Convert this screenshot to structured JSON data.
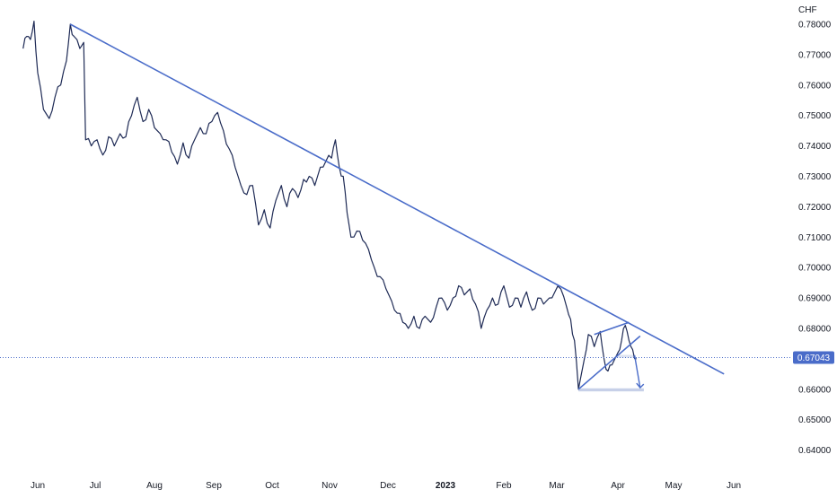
{
  "chart_data": {
    "type": "line",
    "price_axis_unit": "CHF",
    "current_price": {
      "value": 0.67043,
      "label": "0.67043"
    },
    "y_ticks": [
      {
        "value": 0.78,
        "label": "0.78000"
      },
      {
        "value": 0.77,
        "label": "0.77000"
      },
      {
        "value": 0.76,
        "label": "0.76000"
      },
      {
        "value": 0.75,
        "label": "0.75000"
      },
      {
        "value": 0.74,
        "label": "0.74000"
      },
      {
        "value": 0.73,
        "label": "0.73000"
      },
      {
        "value": 0.72,
        "label": "0.72000"
      },
      {
        "value": 0.71,
        "label": "0.71000"
      },
      {
        "value": 0.7,
        "label": "0.70000"
      },
      {
        "value": 0.69,
        "label": "0.69000"
      },
      {
        "value": 0.68,
        "label": "0.68000"
      },
      {
        "value": 0.66,
        "label": "0.66000"
      },
      {
        "value": 0.65,
        "label": "0.65000"
      },
      {
        "value": 0.64,
        "label": "0.64000"
      }
    ],
    "x_ticks": [
      {
        "label": "Jun",
        "date": "2022-06-01",
        "bold": false
      },
      {
        "label": "Jul",
        "date": "2022-07-01",
        "bold": false
      },
      {
        "label": "Aug",
        "date": "2022-08-01",
        "bold": false
      },
      {
        "label": "Sep",
        "date": "2022-09-01",
        "bold": false
      },
      {
        "label": "Oct",
        "date": "2022-10-01",
        "bold": false
      },
      {
        "label": "Nov",
        "date": "2022-11-01",
        "bold": false
      },
      {
        "label": "Dec",
        "date": "2022-12-01",
        "bold": false
      },
      {
        "label": "2023",
        "date": "2023-01-01",
        "bold": true
      },
      {
        "label": "Feb",
        "date": "2023-02-01",
        "bold": false
      },
      {
        "label": "Mar",
        "date": "2023-03-01",
        "bold": false
      },
      {
        "label": "Apr",
        "date": "2023-04-01",
        "bold": false
      },
      {
        "label": "May",
        "date": "2023-05-01",
        "bold": false
      },
      {
        "label": "Jun",
        "date": "2023-06-01",
        "bold": false
      }
    ],
    "series": [
      {
        "color": "#1e2a55",
        "points": [
          [
            "2022-05-20",
            0.772
          ],
          [
            "2022-05-23",
            0.776
          ],
          [
            "2022-05-26",
            0.775
          ],
          [
            "2022-05-29",
            0.781
          ],
          [
            "2022-06-01",
            0.764
          ],
          [
            "2022-06-04",
            0.752
          ],
          [
            "2022-06-07",
            0.749
          ],
          [
            "2022-06-10",
            0.756
          ],
          [
            "2022-06-13",
            0.76
          ],
          [
            "2022-06-16",
            0.768
          ],
          [
            "2022-06-18",
            0.78
          ],
          [
            "2022-06-20",
            0.776
          ],
          [
            "2022-06-23",
            0.772
          ],
          [
            "2022-06-25",
            0.774
          ],
          [
            "2022-06-26",
            0.742
          ],
          [
            "2022-06-29",
            0.74
          ],
          [
            "2022-07-02",
            0.742
          ],
          [
            "2022-07-05",
            0.737
          ],
          [
            "2022-07-08",
            0.743
          ],
          [
            "2022-07-11",
            0.74
          ],
          [
            "2022-07-14",
            0.744
          ],
          [
            "2022-07-17",
            0.743
          ],
          [
            "2022-07-20",
            0.75
          ],
          [
            "2022-07-23",
            0.756
          ],
          [
            "2022-07-26",
            0.748
          ],
          [
            "2022-07-29",
            0.752
          ],
          [
            "2022-08-01",
            0.746
          ],
          [
            "2022-08-04",
            0.744
          ],
          [
            "2022-08-07",
            0.742
          ],
          [
            "2022-08-10",
            0.738
          ],
          [
            "2022-08-13",
            0.734
          ],
          [
            "2022-08-16",
            0.741
          ],
          [
            "2022-08-19",
            0.736
          ],
          [
            "2022-08-22",
            0.742
          ],
          [
            "2022-08-25",
            0.746
          ],
          [
            "2022-08-28",
            0.744
          ],
          [
            "2022-08-31",
            0.748
          ],
          [
            "2022-09-03",
            0.751
          ],
          [
            "2022-09-06",
            0.745
          ],
          [
            "2022-09-09",
            0.739
          ],
          [
            "2022-09-12",
            0.733
          ],
          [
            "2022-09-15",
            0.727
          ],
          [
            "2022-09-18",
            0.724
          ],
          [
            "2022-09-21",
            0.727
          ],
          [
            "2022-09-24",
            0.714
          ],
          [
            "2022-09-27",
            0.719
          ],
          [
            "2022-09-30",
            0.713
          ],
          [
            "2022-10-03",
            0.722
          ],
          [
            "2022-10-06",
            0.727
          ],
          [
            "2022-10-09",
            0.72
          ],
          [
            "2022-10-12",
            0.726
          ],
          [
            "2022-10-15",
            0.723
          ],
          [
            "2022-10-18",
            0.729
          ],
          [
            "2022-10-21",
            0.73
          ],
          [
            "2022-10-24",
            0.727
          ],
          [
            "2022-10-27",
            0.733
          ],
          [
            "2022-10-30",
            0.735
          ],
          [
            "2022-11-02",
            0.736
          ],
          [
            "2022-11-04",
            0.742
          ],
          [
            "2022-11-06",
            0.733
          ],
          [
            "2022-11-08",
            0.73
          ],
          [
            "2022-11-10",
            0.718
          ],
          [
            "2022-11-12",
            0.71
          ],
          [
            "2022-11-15",
            0.712
          ],
          [
            "2022-11-18",
            0.709
          ],
          [
            "2022-11-21",
            0.706
          ],
          [
            "2022-11-24",
            0.7
          ],
          [
            "2022-11-27",
            0.697
          ],
          [
            "2022-11-30",
            0.693
          ],
          [
            "2022-12-03",
            0.689
          ],
          [
            "2022-12-06",
            0.685
          ],
          [
            "2022-12-09",
            0.682
          ],
          [
            "2022-12-12",
            0.68
          ],
          [
            "2022-12-15",
            0.684
          ],
          [
            "2022-12-18",
            0.68
          ],
          [
            "2022-12-21",
            0.684
          ],
          [
            "2022-12-24",
            0.682
          ],
          [
            "2022-12-27",
            0.687
          ],
          [
            "2022-12-30",
            0.69
          ],
          [
            "2023-01-02",
            0.686
          ],
          [
            "2023-01-05",
            0.69
          ],
          [
            "2023-01-08",
            0.694
          ],
          [
            "2023-01-11",
            0.691
          ],
          [
            "2023-01-14",
            0.693
          ],
          [
            "2023-01-17",
            0.688
          ],
          [
            "2023-01-20",
            0.68
          ],
          [
            "2023-01-23",
            0.686
          ],
          [
            "2023-01-26",
            0.69
          ],
          [
            "2023-01-29",
            0.688
          ],
          [
            "2023-02-01",
            0.694
          ],
          [
            "2023-02-04",
            0.687
          ],
          [
            "2023-02-07",
            0.69
          ],
          [
            "2023-02-10",
            0.687
          ],
          [
            "2023-02-13",
            0.692
          ],
          [
            "2023-02-16",
            0.686
          ],
          [
            "2023-02-19",
            0.69
          ],
          [
            "2023-02-22",
            0.688
          ],
          [
            "2023-02-25",
            0.69
          ],
          [
            "2023-02-28",
            0.692
          ],
          [
            "2023-03-03",
            0.693
          ],
          [
            "2023-03-06",
            0.687
          ],
          [
            "2023-03-08",
            0.683
          ],
          [
            "2023-03-10",
            0.676
          ],
          [
            "2023-03-12",
            0.66
          ],
          [
            "2023-03-15",
            0.67
          ],
          [
            "2023-03-17",
            0.678
          ],
          [
            "2023-03-20",
            0.674
          ],
          [
            "2023-03-23",
            0.679
          ],
          [
            "2023-03-25",
            0.67
          ],
          [
            "2023-03-27",
            0.666
          ],
          [
            "2023-03-29",
            0.668
          ],
          [
            "2023-04-01",
            0.672
          ],
          [
            "2023-04-03",
            0.676
          ],
          [
            "2023-04-05",
            0.681
          ],
          [
            "2023-04-07",
            0.676
          ],
          [
            "2023-04-09",
            0.673
          ],
          [
            "2023-04-11",
            0.67
          ]
        ]
      }
    ],
    "drawings": {
      "trendline": {
        "color": "#4a6cc9",
        "from": [
          "2022-06-18",
          0.78
        ],
        "to": [
          "2023-05-27",
          0.665
        ]
      },
      "triangle": {
        "color": "#4a6cc9",
        "upper": {
          "from": [
            "2023-03-20",
            0.678
          ],
          "to": [
            "2023-04-07",
            0.682
          ]
        },
        "lower": {
          "from": [
            "2023-03-12",
            0.66
          ],
          "to": [
            "2023-04-13",
            0.6775
          ]
        }
      },
      "arrow": {
        "color": "#4a6cc9",
        "from": [
          "2023-04-10",
          0.6712
        ],
        "to": [
          "2023-04-13",
          0.6605
        ]
      },
      "zones": [
        {
          "color": "#c7d0e8",
          "x_from": "2023-03-12",
          "x_to": "2023-04-15",
          "y_from": 0.6593,
          "y_to": 0.6603
        },
        {
          "color": "#dde3f1",
          "x_from": "2023-03-31",
          "x_to": "2023-04-10",
          "y_from": 0.6705,
          "y_to": 0.6713
        }
      ]
    }
  }
}
